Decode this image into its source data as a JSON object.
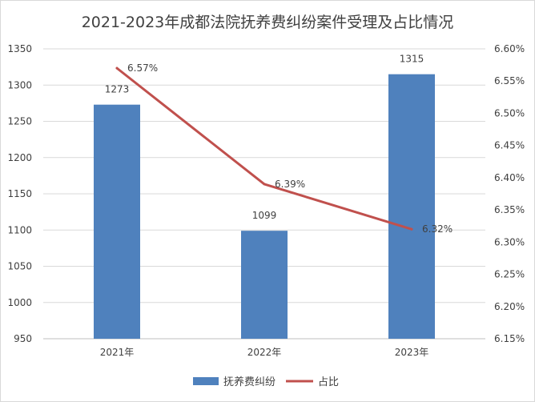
{
  "chart_data": {
    "type": "bar",
    "title": "2021-2023年成都法院抚养费纠纷案件受理及占比情况",
    "categories": [
      "2021年",
      "2022年",
      "2023年"
    ],
    "series": [
      {
        "name": "抚养费纠纷",
        "type": "bar",
        "axis": "left",
        "values": [
          1273,
          1099,
          1315
        ],
        "labels": [
          "1273",
          "1099",
          "1315"
        ],
        "color": "#4f81bd"
      },
      {
        "name": "占比",
        "type": "line",
        "axis": "right",
        "values": [
          6.57,
          6.39,
          6.32
        ],
        "labels": [
          "6.57%",
          "6.39%",
          "6.32%"
        ],
        "color": "#c0504d"
      }
    ],
    "y_left": {
      "min": 950,
      "max": 1350,
      "step": 50,
      "ticks": [
        "950",
        "1000",
        "1050",
        "1100",
        "1150",
        "1200",
        "1250",
        "1300",
        "1350"
      ]
    },
    "y_right": {
      "min": 6.15,
      "max": 6.6,
      "step": 0.05,
      "ticks": [
        "6.15%",
        "6.20%",
        "6.25%",
        "6.30%",
        "6.35%",
        "6.40%",
        "6.45%",
        "6.50%",
        "6.55%",
        "6.60%"
      ]
    },
    "grid": true,
    "legend_position": "bottom"
  }
}
